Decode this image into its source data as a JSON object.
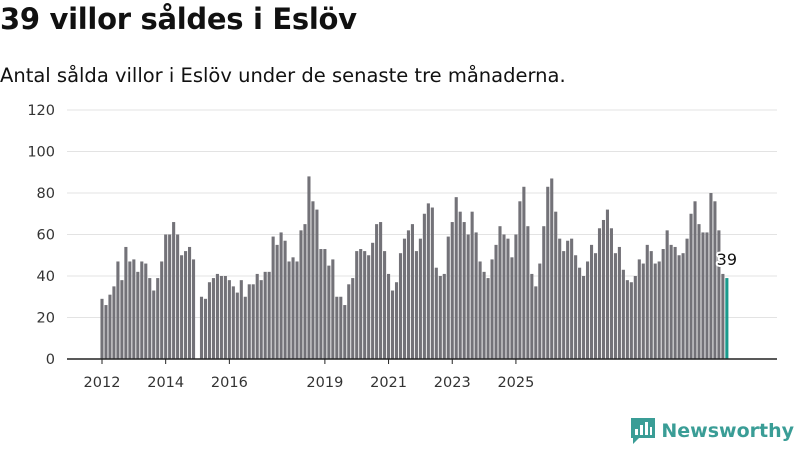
{
  "header": {
    "title": "39 villor såldes i Eslöv",
    "subtitle": "Antal sålda villor i Eslöv under de senaste tre månaderna."
  },
  "brand": {
    "name": "Newsworthy",
    "color": "#3a9d96"
  },
  "colors": {
    "bar": "#737278",
    "highlight": "#1a9a8c",
    "grid": "#e3e3e3"
  },
  "chart_data": {
    "type": "bar",
    "ylim": [
      0,
      120
    ],
    "yticks": [
      0,
      20,
      40,
      60,
      80,
      100,
      120
    ],
    "xticks": [
      {
        "label": "2012",
        "index": 0
      },
      {
        "label": "2014",
        "index": 16
      },
      {
        "label": "2016",
        "index": 32
      },
      {
        "label": "2019",
        "index": 56
      },
      {
        "label": "2021",
        "index": 72
      },
      {
        "label": "2023",
        "index": 88
      },
      {
        "label": "2025",
        "index": 104
      }
    ],
    "values": [
      29,
      26,
      31,
      35,
      47,
      38,
      54,
      47,
      48,
      42,
      47,
      46,
      39,
      33,
      39,
      47,
      60,
      60,
      66,
      60,
      50,
      52,
      54,
      48,
      0,
      30,
      29,
      37,
      39,
      41,
      40,
      40,
      38,
      35,
      32,
      38,
      30,
      36,
      36,
      41,
      38,
      42,
      42,
      59,
      55,
      61,
      57,
      47,
      49,
      47,
      62,
      65,
      88,
      76,
      72,
      53,
      53,
      45,
      48,
      30,
      30,
      26,
      36,
      39,
      52,
      53,
      52,
      50,
      56,
      65,
      66,
      52,
      41,
      33,
      37,
      51,
      58,
      62,
      65,
      52,
      58,
      70,
      75,
      73,
      44,
      40,
      41,
      59,
      66,
      78,
      71,
      66,
      60,
      71,
      61,
      47,
      42,
      39,
      48,
      55,
      64,
      60,
      58,
      49,
      60,
      76,
      83,
      64,
      41,
      35,
      46,
      64,
      83,
      87,
      71,
      58,
      52,
      57,
      58,
      50,
      44,
      40,
      47,
      55,
      51,
      63,
      67,
      72,
      63,
      51,
      54,
      43,
      38,
      37,
      40,
      48,
      46,
      55,
      52,
      46,
      47,
      53,
      62,
      55,
      54,
      50,
      51,
      58,
      70,
      76,
      65,
      61,
      61,
      80,
      76,
      62,
      41,
      39
    ],
    "highlight_label": "39"
  }
}
